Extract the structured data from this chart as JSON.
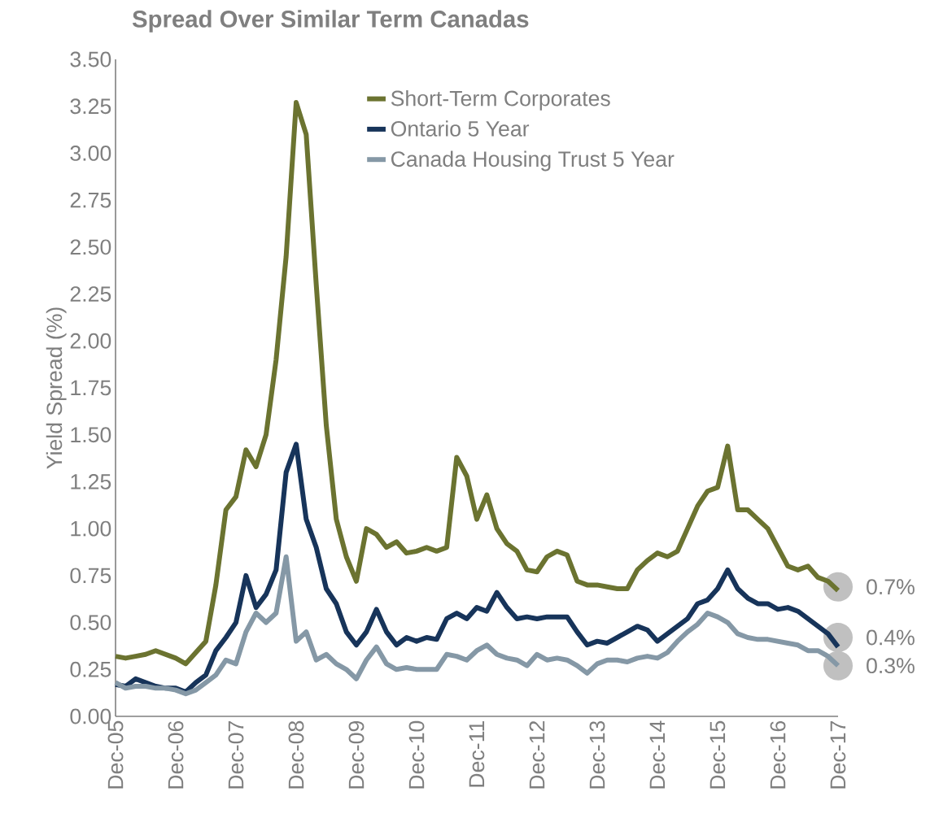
{
  "chart_data": {
    "type": "line",
    "title": "Spread Over Similar Term Canadas",
    "ylabel": "Yield Spread (%)",
    "x": [
      "2005-12",
      "2006-02",
      "2006-04",
      "2006-06",
      "2006-08",
      "2006-10",
      "2006-12",
      "2007-02",
      "2007-04",
      "2007-06",
      "2007-08",
      "2007-10",
      "2007-12",
      "2008-02",
      "2008-04",
      "2008-06",
      "2008-08",
      "2008-10",
      "2008-12",
      "2009-02",
      "2009-04",
      "2009-06",
      "2009-08",
      "2009-10",
      "2009-12",
      "2010-02",
      "2010-04",
      "2010-06",
      "2010-08",
      "2010-10",
      "2010-12",
      "2011-02",
      "2011-04",
      "2011-06",
      "2011-08",
      "2011-10",
      "2011-12",
      "2012-02",
      "2012-04",
      "2012-06",
      "2012-08",
      "2012-10",
      "2012-12",
      "2013-02",
      "2013-04",
      "2013-06",
      "2013-08",
      "2013-10",
      "2013-12",
      "2014-02",
      "2014-04",
      "2014-06",
      "2014-08",
      "2014-10",
      "2014-12",
      "2015-02",
      "2015-04",
      "2015-06",
      "2015-08",
      "2015-10",
      "2015-12",
      "2016-02",
      "2016-04",
      "2016-06",
      "2016-08",
      "2016-10",
      "2016-12",
      "2017-02",
      "2017-04",
      "2017-06",
      "2017-08",
      "2017-10",
      "2017-12"
    ],
    "series": [
      {
        "name": "Short-Term Corporates",
        "color": "#6b7330",
        "values": [
          0.32,
          0.31,
          0.32,
          0.33,
          0.35,
          0.33,
          0.31,
          0.28,
          0.34,
          0.4,
          0.7,
          1.1,
          1.17,
          1.42,
          1.33,
          1.5,
          1.9,
          2.45,
          3.27,
          3.1,
          2.3,
          1.55,
          1.05,
          0.85,
          0.72,
          1.0,
          0.97,
          0.9,
          0.93,
          0.87,
          0.88,
          0.9,
          0.88,
          0.9,
          1.38,
          1.28,
          1.05,
          1.18,
          1.0,
          0.92,
          0.88,
          0.78,
          0.77,
          0.85,
          0.88,
          0.86,
          0.72,
          0.7,
          0.7,
          0.69,
          0.68,
          0.68,
          0.78,
          0.83,
          0.87,
          0.85,
          0.88,
          1.0,
          1.12,
          1.2,
          1.22,
          1.44,
          1.1,
          1.1,
          1.05,
          1.0,
          0.9,
          0.8,
          0.78,
          0.8,
          0.74,
          0.72,
          0.67
        ]
      },
      {
        "name": "Ontario 5 Year",
        "color": "#17345a",
        "values": [
          0.17,
          0.16,
          0.2,
          0.18,
          0.16,
          0.15,
          0.15,
          0.13,
          0.18,
          0.22,
          0.35,
          0.42,
          0.5,
          0.75,
          0.58,
          0.65,
          0.78,
          1.3,
          1.45,
          1.05,
          0.9,
          0.68,
          0.6,
          0.45,
          0.38,
          0.45,
          0.57,
          0.45,
          0.38,
          0.42,
          0.4,
          0.42,
          0.41,
          0.52,
          0.55,
          0.52,
          0.58,
          0.56,
          0.66,
          0.58,
          0.52,
          0.53,
          0.52,
          0.53,
          0.53,
          0.53,
          0.45,
          0.38,
          0.4,
          0.39,
          0.42,
          0.45,
          0.48,
          0.46,
          0.4,
          0.44,
          0.48,
          0.52,
          0.6,
          0.62,
          0.68,
          0.78,
          0.68,
          0.63,
          0.6,
          0.6,
          0.57,
          0.58,
          0.56,
          0.52,
          0.48,
          0.44,
          0.37
        ]
      },
      {
        "name": "Canada Housing Trust 5 Year",
        "color": "#8598a6",
        "values": [
          0.18,
          0.15,
          0.16,
          0.16,
          0.15,
          0.15,
          0.14,
          0.12,
          0.14,
          0.18,
          0.22,
          0.3,
          0.28,
          0.45,
          0.55,
          0.5,
          0.55,
          0.85,
          0.4,
          0.45,
          0.3,
          0.33,
          0.28,
          0.25,
          0.2,
          0.3,
          0.37,
          0.28,
          0.25,
          0.26,
          0.25,
          0.25,
          0.25,
          0.33,
          0.32,
          0.3,
          0.35,
          0.38,
          0.33,
          0.31,
          0.3,
          0.27,
          0.33,
          0.3,
          0.31,
          0.3,
          0.27,
          0.23,
          0.28,
          0.3,
          0.3,
          0.29,
          0.31,
          0.32,
          0.31,
          0.34,
          0.4,
          0.45,
          0.49,
          0.55,
          0.53,
          0.5,
          0.44,
          0.42,
          0.41,
          0.41,
          0.4,
          0.39,
          0.38,
          0.35,
          0.35,
          0.32,
          0.27
        ]
      }
    ],
    "xlim": [
      "2005-12",
      "2017-12"
    ],
    "xticks": [
      {
        "value": "2005-12",
        "label": "Dec-05"
      },
      {
        "value": "2006-12",
        "label": "Dec-06"
      },
      {
        "value": "2007-12",
        "label": "Dec-07"
      },
      {
        "value": "2008-12",
        "label": "Dec-08"
      },
      {
        "value": "2009-12",
        "label": "Dec-09"
      },
      {
        "value": "2010-12",
        "label": "Dec-10"
      },
      {
        "value": "2011-12",
        "label": "Dec-11"
      },
      {
        "value": "2012-12",
        "label": "Dec-12"
      },
      {
        "value": "2013-12",
        "label": "Dec-13"
      },
      {
        "value": "2014-12",
        "label": "Dec-14"
      },
      {
        "value": "2015-12",
        "label": "Dec-15"
      },
      {
        "value": "2016-12",
        "label": "Dec-16"
      },
      {
        "value": "2017-12",
        "label": "Dec-17"
      }
    ],
    "ylim": [
      0,
      3.5
    ],
    "yticks": [
      {
        "value": 0,
        "label": "0.00"
      },
      {
        "value": 0.25,
        "label": "0.25"
      },
      {
        "value": 0.5,
        "label": "0.50"
      },
      {
        "value": 0.75,
        "label": "0.75"
      },
      {
        "value": 1,
        "label": "1.00"
      },
      {
        "value": 1.25,
        "label": "1.25"
      },
      {
        "value": 1.5,
        "label": "1.50"
      },
      {
        "value": 1.75,
        "label": "1.75"
      },
      {
        "value": 2,
        "label": "2.00"
      },
      {
        "value": 2.25,
        "label": "2.25"
      },
      {
        "value": 2.5,
        "label": "2.50"
      },
      {
        "value": 2.75,
        "label": "2.75"
      },
      {
        "value": 3,
        "label": "3.00"
      },
      {
        "value": 3.25,
        "label": "3.25"
      },
      {
        "value": 3.5,
        "label": "3.50"
      }
    ],
    "annotations": [
      {
        "text": "0.7%",
        "x": "2017-12",
        "y": 0.69
      },
      {
        "text": "0.4%",
        "x": "2017-12",
        "y": 0.42
      },
      {
        "text": "0.3%",
        "x": "2017-12",
        "y": 0.27
      }
    ],
    "grid": false,
    "legend": "top right",
    "marker": "none",
    "line_style": "solid"
  }
}
